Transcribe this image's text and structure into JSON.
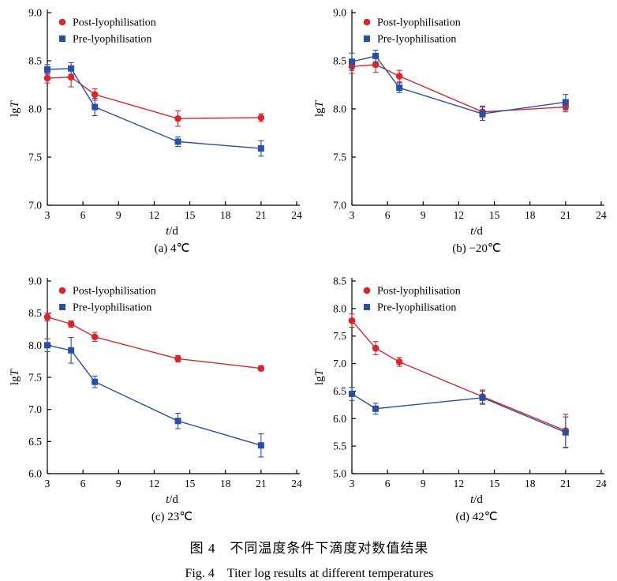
{
  "figure": {
    "caption_zh": "图 4　不同温度条件下滴度对数值结果",
    "caption_en": "Fig. 4　Titer log results at different temperatures"
  },
  "chart_data": [
    {
      "type": "line",
      "subplot_label": "(a) 4℃",
      "xlabel": "t/d",
      "ylabel": "lgT",
      "xlim": [
        3,
        24
      ],
      "xticks": [
        3,
        6,
        9,
        12,
        15,
        18,
        21,
        24
      ],
      "ylim": [
        7.0,
        9.0
      ],
      "yticks": [
        7.0,
        7.5,
        8.0,
        8.5,
        9.0
      ],
      "legend_position": "top-left",
      "grid": false,
      "series": [
        {
          "name": "Post-lyophilisation",
          "marker": "circle",
          "color": "#d8262c",
          "x": [
            3,
            5,
            7,
            14,
            21
          ],
          "y": [
            8.32,
            8.33,
            8.15,
            7.9,
            7.91
          ],
          "yerr": [
            0.05,
            0.1,
            0.06,
            0.08,
            0.04
          ]
        },
        {
          "name": "Pre-lyophilisation",
          "marker": "square",
          "color": "#2a4fa2",
          "x": [
            3,
            5,
            7,
            14,
            21
          ],
          "y": [
            8.41,
            8.42,
            8.02,
            7.66,
            7.59
          ],
          "yerr": [
            0.05,
            0.06,
            0.09,
            0.05,
            0.08
          ]
        }
      ]
    },
    {
      "type": "line",
      "subplot_label": "(b) −20℃",
      "xlabel": "t/d",
      "ylabel": "lgT",
      "xlim": [
        3,
        24
      ],
      "xticks": [
        3,
        6,
        9,
        12,
        15,
        18,
        21,
        24
      ],
      "ylim": [
        7.0,
        9.0
      ],
      "yticks": [
        7.0,
        7.5,
        8.0,
        8.5,
        9.0
      ],
      "legend_position": "top-left",
      "grid": false,
      "series": [
        {
          "name": "Post-lyophilisation",
          "marker": "circle",
          "color": "#d8262c",
          "x": [
            3,
            5,
            7,
            14,
            21
          ],
          "y": [
            8.44,
            8.46,
            8.34,
            7.97,
            8.02
          ],
          "yerr": [
            0.07,
            0.08,
            0.06,
            0.06,
            0.05
          ]
        },
        {
          "name": "Pre-lyophilisation",
          "marker": "square",
          "color": "#2a4fa2",
          "x": [
            3,
            5,
            7,
            14,
            21
          ],
          "y": [
            8.49,
            8.55,
            8.22,
            7.95,
            8.07
          ],
          "yerr": [
            0.09,
            0.06,
            0.05,
            0.07,
            0.08
          ]
        }
      ]
    },
    {
      "type": "line",
      "subplot_label": "(c) 23℃",
      "xlabel": "t/d",
      "ylabel": "lgT",
      "xlim": [
        3,
        24
      ],
      "xticks": [
        3,
        6,
        9,
        12,
        15,
        18,
        21,
        24
      ],
      "ylim": [
        6.0,
        9.0
      ],
      "yticks": [
        6.0,
        6.5,
        7.0,
        7.5,
        8.0,
        8.5,
        9.0
      ],
      "legend_position": "top-left",
      "grid": false,
      "series": [
        {
          "name": "Post-lyophilisation",
          "marker": "circle",
          "color": "#d8262c",
          "x": [
            3,
            5,
            7,
            14,
            21
          ],
          "y": [
            8.44,
            8.33,
            8.13,
            7.79,
            7.64
          ],
          "yerr": [
            0.06,
            0.05,
            0.07,
            0.05,
            0.04
          ]
        },
        {
          "name": "Pre-lyophilisation",
          "marker": "square",
          "color": "#2a4fa2",
          "x": [
            3,
            5,
            7,
            14,
            21
          ],
          "y": [
            8.0,
            7.92,
            7.43,
            6.82,
            6.44
          ],
          "yerr": [
            0.1,
            0.2,
            0.09,
            0.12,
            0.18
          ]
        }
      ]
    },
    {
      "type": "line",
      "subplot_label": "(d) 42℃",
      "xlabel": "t/d",
      "ylabel": "lgT",
      "xlim": [
        3,
        24
      ],
      "xticks": [
        3,
        6,
        9,
        12,
        15,
        18,
        21,
        24
      ],
      "ylim": [
        5.0,
        8.5
      ],
      "yticks": [
        5.0,
        5.5,
        6.0,
        6.5,
        7.0,
        7.5,
        8.0,
        8.5
      ],
      "legend_position": "top-left",
      "grid": false,
      "series": [
        {
          "name": "Post-lyophilisation",
          "marker": "circle",
          "color": "#d8262c",
          "x": [
            3,
            5,
            7,
            14,
            21
          ],
          "y": [
            7.78,
            7.28,
            7.03,
            6.4,
            5.78
          ],
          "yerr": [
            0.12,
            0.12,
            0.08,
            0.12,
            0.3
          ]
        },
        {
          "name": "Pre-lyophilisation",
          "marker": "square",
          "color": "#2a4fa2",
          "x": [
            3,
            5,
            14,
            21
          ],
          "y": [
            6.45,
            6.18,
            6.38,
            5.75
          ],
          "yerr": [
            0.12,
            0.1,
            0.12,
            0.28
          ]
        }
      ]
    }
  ]
}
